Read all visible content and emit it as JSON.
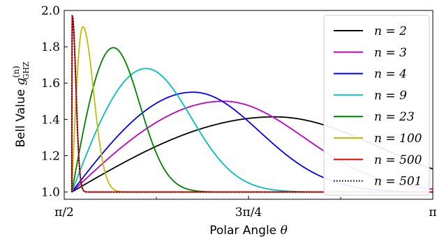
{
  "chart_data": {
    "type": "line",
    "xlabel_prefix": "Polar Angle ",
    "xlabel_symbol": "θ",
    "ylabel_prefix": "Bell Value ",
    "ylabel_symbol": "g",
    "ylabel_sup": "(n)",
    "ylabel_sub": "GHZ",
    "xlim": [
      1.5708,
      3.1416
    ],
    "ylim": [
      0.96,
      2.0
    ],
    "x_ticks": [
      {
        "value": 1.5708,
        "label": "π/2"
      },
      {
        "value": 2.3562,
        "label": "3π/4"
      },
      {
        "value": 3.1416,
        "label": "π"
      }
    ],
    "x_minor_ticks": [
      1.9635,
      2.7489
    ],
    "y_ticks": [
      {
        "value": 1.0,
        "label": "1.0"
      },
      {
        "value": 1.2,
        "label": "1.2"
      },
      {
        "value": 1.4,
        "label": "1.4"
      },
      {
        "value": 1.6,
        "label": "1.6"
      },
      {
        "value": 1.8,
        "label": "1.8"
      },
      {
        "value": 2.0,
        "label": "2.0"
      }
    ],
    "legend_position": "right",
    "series": [
      {
        "name": "n = 2",
        "n": 2,
        "color": "#000000",
        "style": "solid"
      },
      {
        "name": "n = 3",
        "n": 3,
        "color": "#bf00bf",
        "style": "solid"
      },
      {
        "name": "n = 4",
        "n": 4,
        "color": "#0000ff",
        "style": "solid"
      },
      {
        "name": "n = 9",
        "n": 9,
        "color": "#00bfbf",
        "style": "solid"
      },
      {
        "name": "n = 23",
        "n": 23,
        "color": "#008000",
        "style": "solid"
      },
      {
        "name": "n = 100",
        "n": 100,
        "color": "#bfbf00",
        "style": "solid"
      },
      {
        "name": "n = 500",
        "n": 500,
        "color": "#ff0000",
        "style": "solid"
      },
      {
        "name": "n = 501",
        "n": 501,
        "color": "#000000",
        "style": "dotted"
      }
    ]
  }
}
